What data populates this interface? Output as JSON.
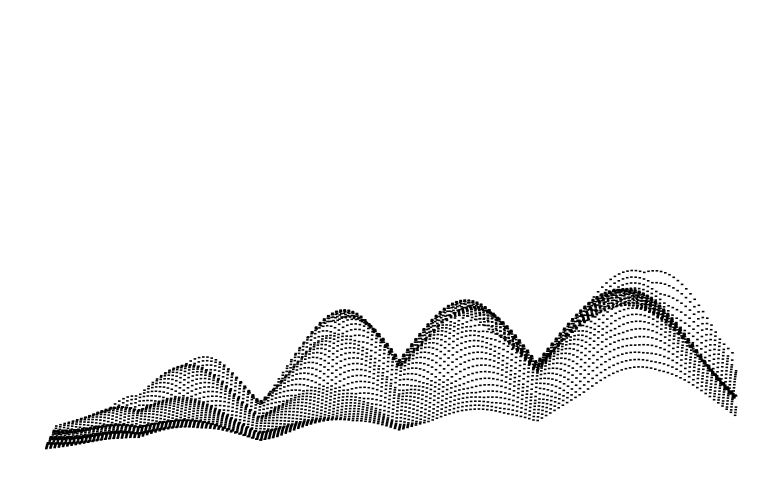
{
  "canvas": {
    "background": "#ffffff",
    "ink_color": "#000000"
  },
  "artwork": {
    "kind": "dot-matrix 3D surface plot",
    "style": "stacked offset wave profiles rendered as small dashes",
    "labels_visible": false
  }
}
